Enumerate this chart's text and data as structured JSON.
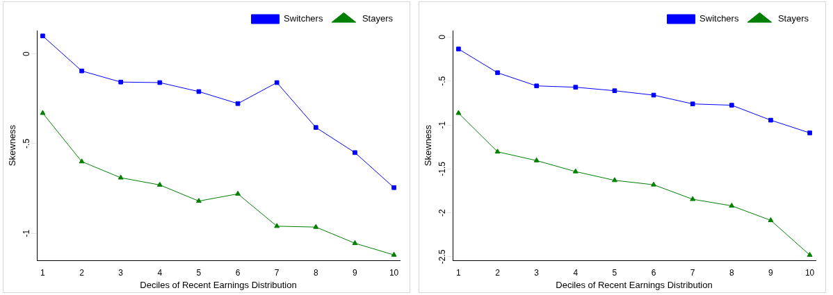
{
  "chart_data": [
    {
      "type": "line",
      "xlabel": "Deciles of Recent Earnings Distribution",
      "ylabel": "Skewness",
      "x": [
        1,
        2,
        3,
        4,
        5,
        6,
        7,
        8,
        9,
        10
      ],
      "xlim": [
        0.85,
        10.15
      ],
      "xticks": [
        1,
        2,
        3,
        4,
        5,
        6,
        7,
        8,
        9,
        10
      ],
      "ylim": [
        -1.15,
        0.13
      ],
      "yticks": [
        {
          "value": 0,
          "label": "0"
        },
        {
          "value": -0.5,
          "label": "-.5"
        },
        {
          "value": -1,
          "label": "-1"
        }
      ],
      "grid": false,
      "legend": "top right",
      "series": [
        {
          "name": "Switchers",
          "color": "#0000ff",
          "marker": "square",
          "values": [
            0.1,
            -0.095,
            -0.157,
            -0.16,
            -0.21,
            -0.277,
            -0.16,
            -0.41,
            -0.55,
            -0.745
          ]
        },
        {
          "name": "Stayers",
          "color": "#007f00",
          "marker": "triangle",
          "values": [
            -0.33,
            -0.6,
            -0.69,
            -0.73,
            -0.82,
            -0.78,
            -0.96,
            -0.965,
            -1.055,
            -1.12
          ]
        }
      ]
    },
    {
      "type": "line",
      "xlabel": "Deciles of Recent Earnings Distribution",
      "ylabel": "Skewness",
      "x": [
        1,
        2,
        3,
        4,
        5,
        6,
        7,
        8,
        9,
        10
      ],
      "xlim": [
        0.85,
        10.15
      ],
      "xticks": [
        1,
        2,
        3,
        4,
        5,
        6,
        7,
        8,
        9,
        10
      ],
      "ylim": [
        -2.54,
        0.075
      ],
      "yticks": [
        {
          "value": 0,
          "label": "0"
        },
        {
          "value": -0.5,
          "label": "-.5"
        },
        {
          "value": -1,
          "label": "-1"
        },
        {
          "value": -1.5,
          "label": "-1.5"
        },
        {
          "value": -2,
          "label": "-2"
        },
        {
          "value": -2.5,
          "label": "-2.5"
        }
      ],
      "grid": false,
      "legend": "top right",
      "series": [
        {
          "name": "Switchers",
          "color": "#0000ff",
          "marker": "square",
          "values": [
            -0.135,
            -0.405,
            -0.555,
            -0.57,
            -0.61,
            -0.66,
            -0.76,
            -0.775,
            -0.945,
            -1.09
          ]
        },
        {
          "name": "Stayers",
          "color": "#007f00",
          "marker": "triangle",
          "values": [
            -0.865,
            -1.305,
            -1.405,
            -1.53,
            -1.63,
            -1.68,
            -1.845,
            -1.92,
            -2.085,
            -2.48
          ]
        }
      ]
    }
  ]
}
